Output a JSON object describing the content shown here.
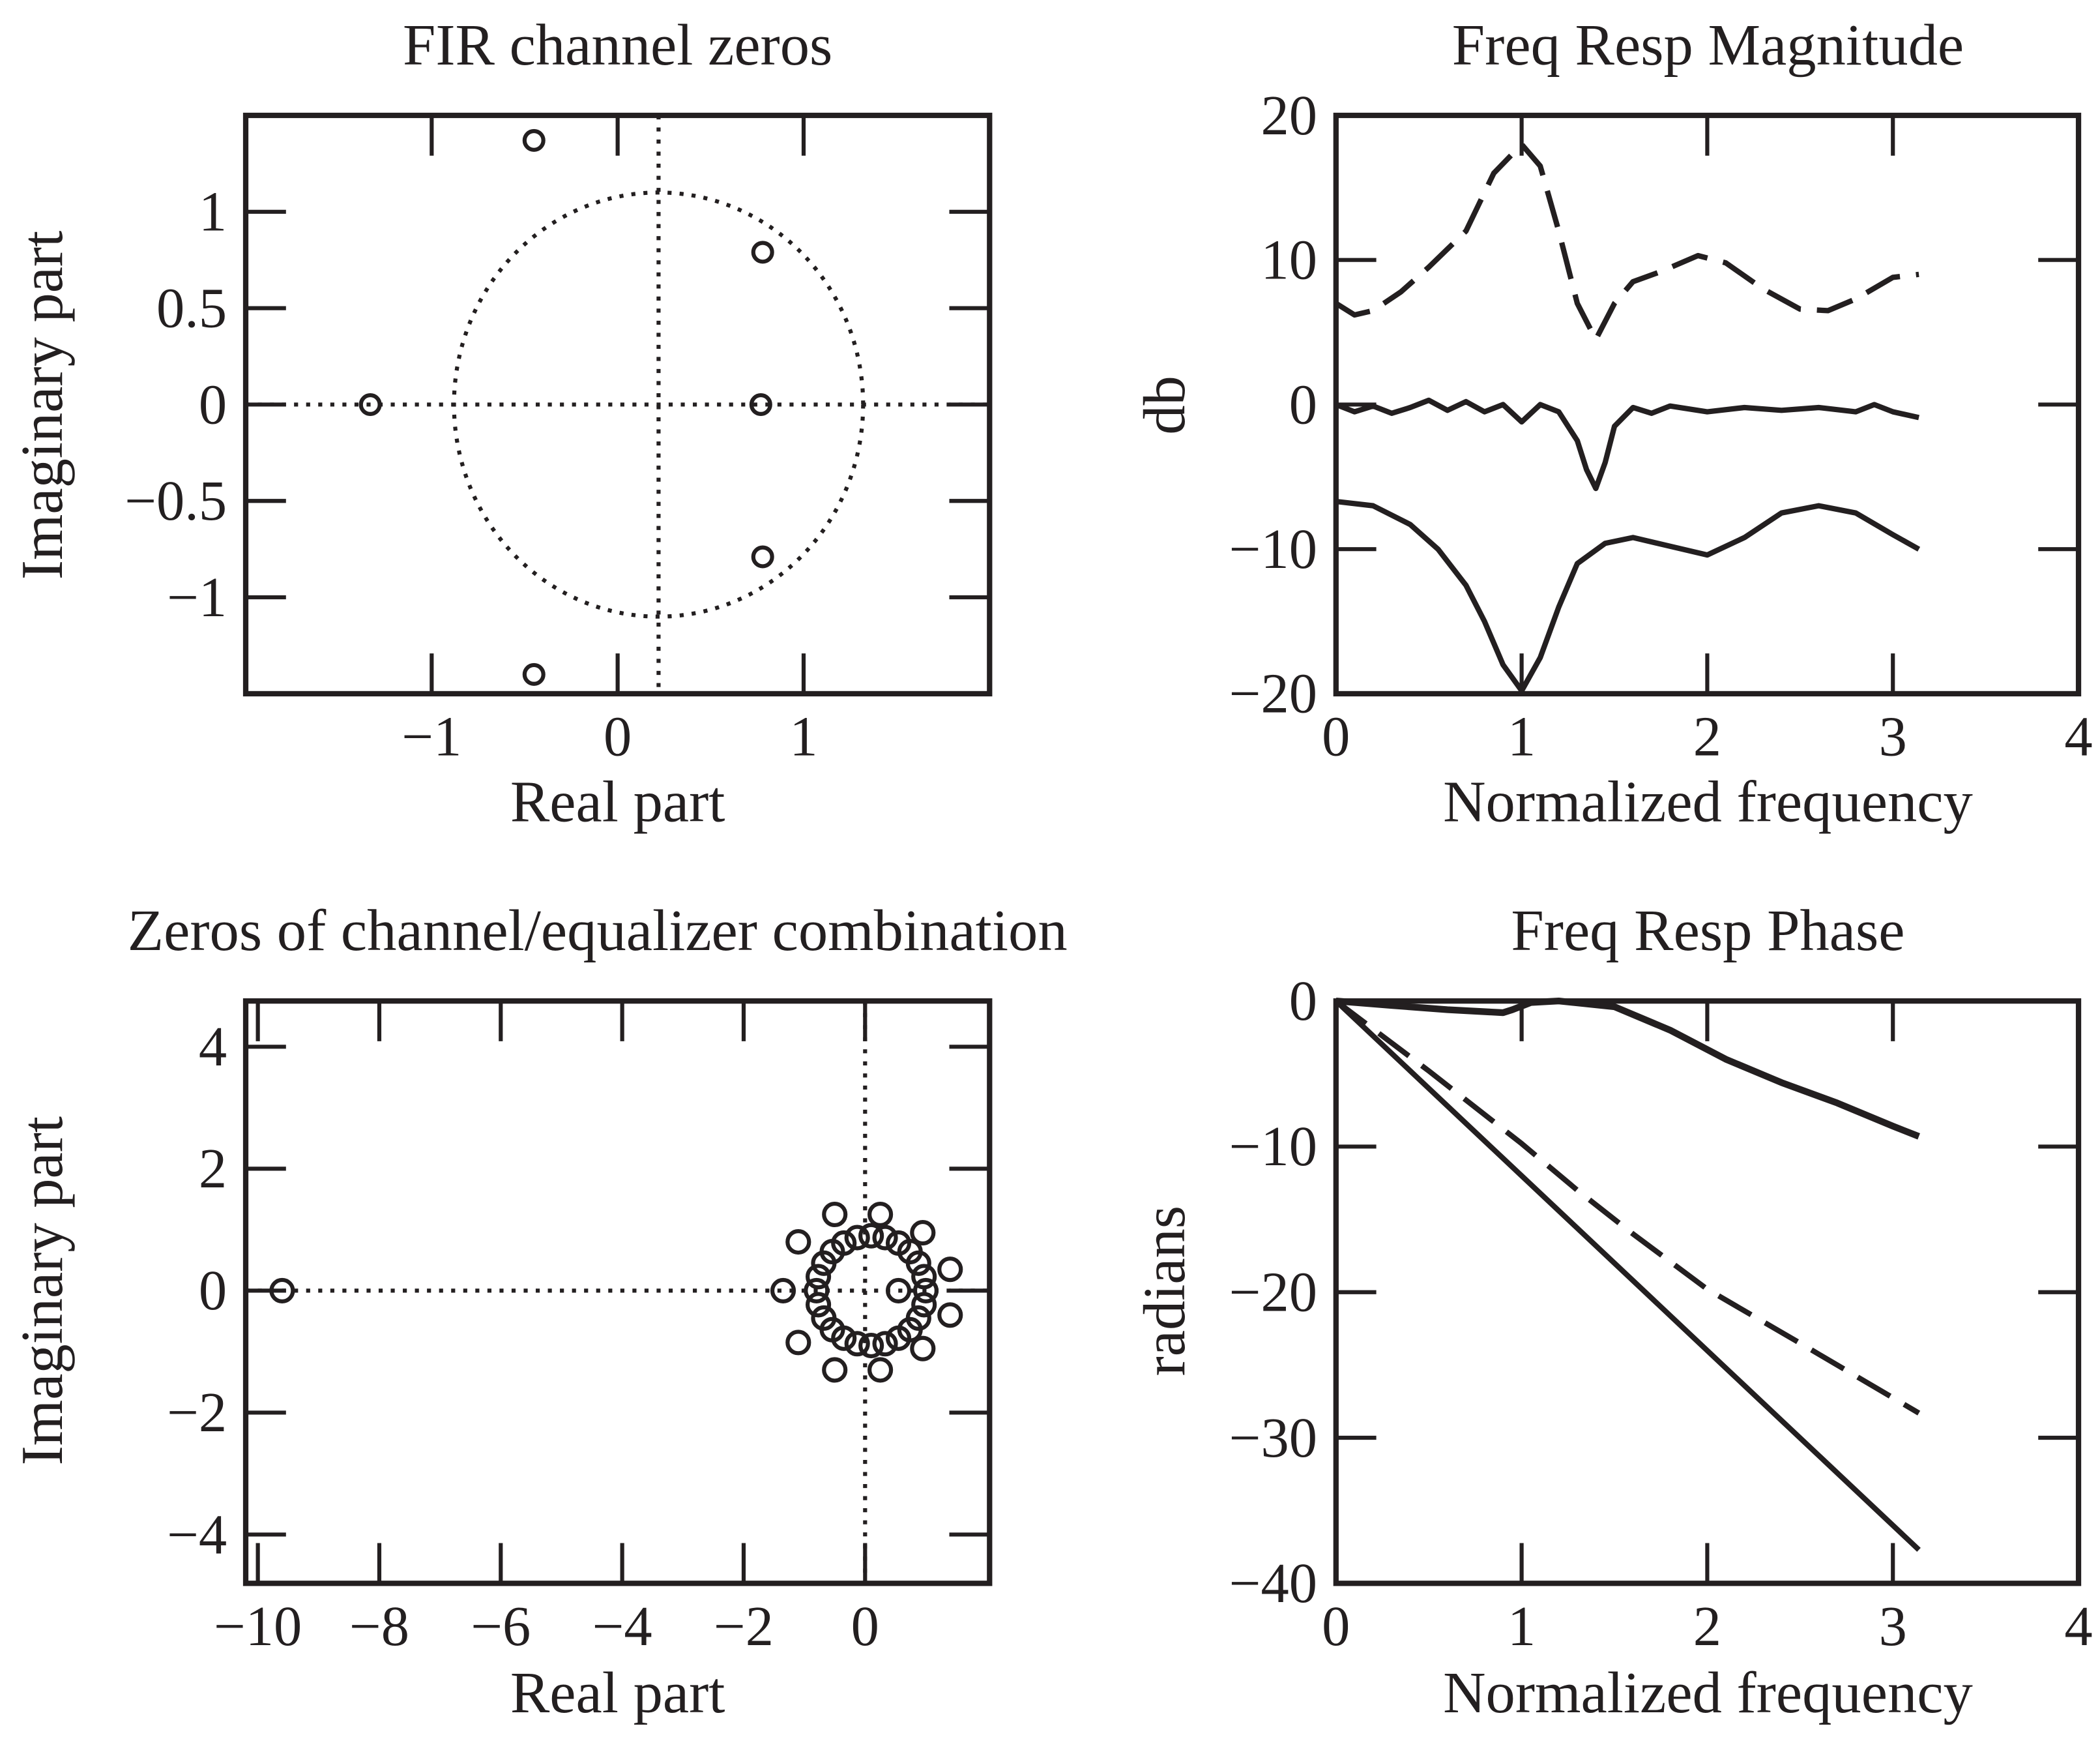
{
  "chart_data": [
    {
      "type": "scatter",
      "title": "FIR channel zeros",
      "xlabel": "Real part",
      "ylabel": "Imaginary part",
      "xlim": [
        -2,
        2
      ],
      "ylim": [
        -1.5,
        1.5
      ],
      "xticks": [
        -1,
        0,
        1
      ],
      "xtick_labels": [
        "−1",
        "0",
        "1"
      ],
      "yticks": [
        1,
        0.5,
        0,
        -0.5,
        -1
      ],
      "ytick_labels": [
        "1",
        "0.5",
        "0",
        "−0.5",
        "−1"
      ],
      "marker": "circle-open",
      "zeros": [
        [
          -0.45,
          1.37
        ],
        [
          0.78,
          0.79
        ],
        [
          -1.33,
          0
        ],
        [
          0.77,
          0
        ],
        [
          0.78,
          -0.79
        ],
        [
          -0.45,
          -1.4
        ]
      ],
      "reference_circle": {
        "center": [
          0.22,
          0
        ],
        "radius": 1.1
      },
      "axes_lines": {
        "x_at": 0.22,
        "y_at": 0
      }
    },
    {
      "type": "line",
      "title": "Freq Resp Magnitude",
      "xlabel": "Normalized frequency",
      "ylabel": "db",
      "xlim": [
        0,
        4
      ],
      "ylim": [
        -20,
        20
      ],
      "xticks": [
        0,
        1,
        2,
        3,
        4
      ],
      "xtick_labels": [
        "0",
        "1",
        "2",
        "3",
        "4"
      ],
      "yticks": [
        20,
        10,
        0,
        -10,
        -20
      ],
      "ytick_labels": [
        "20",
        "10",
        "0",
        "−10",
        "−20"
      ],
      "series": [
        {
          "style": "dashed",
          "x": [
            0,
            0.1,
            0.2,
            0.35,
            0.5,
            0.7,
            0.85,
            1.0,
            1.1,
            1.2,
            1.3,
            1.4,
            1.5,
            1.6,
            1.75,
            1.95,
            2.1,
            2.3,
            2.5,
            2.65,
            2.8,
            3.0,
            3.14
          ],
          "y": [
            7,
            6.2,
            6.5,
            7.8,
            9.5,
            12,
            16,
            18,
            16.5,
            12,
            7,
            4.5,
            7,
            8.5,
            9.2,
            10.3,
            9.8,
            8,
            6.6,
            6.5,
            7.3,
            8.8,
            9
          ]
        },
        {
          "style": "solid",
          "x": [
            0,
            0.1,
            0.2,
            0.3,
            0.4,
            0.5,
            0.6,
            0.7,
            0.8,
            0.9,
            1.0,
            1.1,
            1.2,
            1.3,
            1.35,
            1.4,
            1.45,
            1.5,
            1.6,
            1.7,
            1.8,
            2.0,
            2.2,
            2.4,
            2.6,
            2.8,
            2.9,
            3.0,
            3.14
          ],
          "y": [
            0,
            -0.5,
            -0.1,
            -0.6,
            -0.2,
            0.3,
            -0.4,
            0.2,
            -0.5,
            0,
            -1.2,
            0,
            -0.5,
            -2.5,
            -4.5,
            -5.8,
            -4,
            -1.5,
            -0.2,
            -0.6,
            -0.1,
            -0.5,
            -0.2,
            -0.4,
            -0.2,
            -0.5,
            0,
            -0.5,
            -0.9
          ]
        },
        {
          "style": "solid",
          "x": [
            0,
            0.2,
            0.4,
            0.55,
            0.7,
            0.8,
            0.9,
            1.0,
            1.1,
            1.2,
            1.3,
            1.45,
            1.6,
            1.8,
            2.0,
            2.2,
            2.4,
            2.6,
            2.8,
            3.0,
            3.14
          ],
          "y": [
            -6.7,
            -7,
            -8.3,
            -10,
            -12.5,
            -15,
            -18,
            -19.8,
            -17.5,
            -14,
            -11,
            -9.6,
            -9.2,
            -9.8,
            -10.4,
            -9.2,
            -7.5,
            -7,
            -7.5,
            -9,
            -10
          ]
        }
      ]
    },
    {
      "type": "scatter",
      "title": "Zeros of channel/equalizer combination",
      "xlabel": "Real part",
      "ylabel": "Imaginary part",
      "xlim": [
        -10.2,
        2.05
      ],
      "ylim": [
        -4.8,
        4.75
      ],
      "xticks": [
        -10,
        -8,
        -6,
        -4,
        -2,
        0
      ],
      "xtick_labels": [
        "−10",
        "−8",
        "−6",
        "−4",
        "−2",
        "0"
      ],
      "yticks": [
        4,
        2,
        0,
        -2,
        -4
      ],
      "ytick_labels": [
        "4",
        "2",
        "0",
        "−2",
        "−4"
      ],
      "marker": "circle-open",
      "axes_lines": {
        "x_at": 0,
        "y_at": 0
      },
      "zeros": [
        [
          -9.6,
          0
        ],
        [
          -1.35,
          0
        ],
        [
          0.55,
          0
        ],
        [
          1.0,
          0
        ],
        [
          0.97,
          0.23
        ],
        [
          0.88,
          0.45
        ],
        [
          0.74,
          0.64
        ],
        [
          0.55,
          0.78
        ],
        [
          0.33,
          0.87
        ],
        [
          0.1,
          0.9
        ],
        [
          -0.13,
          0.87
        ],
        [
          -0.35,
          0.78
        ],
        [
          -0.54,
          0.64
        ],
        [
          -0.68,
          0.45
        ],
        [
          -0.77,
          0.23
        ],
        [
          -0.8,
          0
        ],
        [
          -0.77,
          -0.23
        ],
        [
          -0.68,
          -0.45
        ],
        [
          -0.54,
          -0.64
        ],
        [
          -0.35,
          -0.78
        ],
        [
          -0.13,
          -0.87
        ],
        [
          0.1,
          -0.9
        ],
        [
          0.33,
          -0.87
        ],
        [
          0.55,
          -0.78
        ],
        [
          0.74,
          -0.64
        ],
        [
          0.88,
          -0.45
        ],
        [
          0.97,
          -0.23
        ],
        [
          -0.5,
          1.25
        ],
        [
          0.25,
          1.25
        ],
        [
          0.95,
          0.95
        ],
        [
          1.4,
          0.35
        ],
        [
          1.4,
          -0.4
        ],
        [
          0.95,
          -0.95
        ],
        [
          0.25,
          -1.3
        ],
        [
          -0.5,
          -1.3
        ],
        [
          -1.1,
          -0.85
        ],
        [
          -1.1,
          0.8
        ]
      ]
    },
    {
      "type": "line",
      "title": "Freq Resp Phase",
      "xlabel": "Normalized frequency",
      "ylabel": "radians",
      "xlim": [
        0,
        4
      ],
      "ylim": [
        -40,
        0
      ],
      "xticks": [
        0,
        1,
        2,
        3,
        4
      ],
      "xtick_labels": [
        "0",
        "1",
        "2",
        "3",
        "4"
      ],
      "yticks": [
        0,
        -10,
        -20,
        -30,
        -40
      ],
      "ytick_labels": [
        "0",
        "−10",
        "−20",
        "−30",
        "−40"
      ],
      "series": [
        {
          "style": "solid-thick",
          "x": [
            0,
            0.3,
            0.6,
            0.9,
            0.95,
            1.05,
            1.2,
            1.5,
            1.8,
            2.1,
            2.4,
            2.7,
            3.0,
            3.14
          ],
          "y": [
            0,
            -0.3,
            -0.6,
            -0.8,
            -0.6,
            -0.1,
            0,
            -0.4,
            -2,
            -4,
            -5.6,
            -7,
            -8.6,
            -9.3
          ]
        },
        {
          "style": "dashed",
          "x": [
            0,
            0.5,
            1.0,
            1.3,
            1.6,
            2.0,
            2.5,
            3.14
          ],
          "y": [
            0,
            -4.8,
            -9.8,
            -13,
            -16,
            -19.8,
            -23.5,
            -28.3
          ]
        },
        {
          "style": "solid",
          "x": [
            0,
            3.14
          ],
          "y": [
            0,
            -37.7
          ]
        }
      ]
    }
  ]
}
